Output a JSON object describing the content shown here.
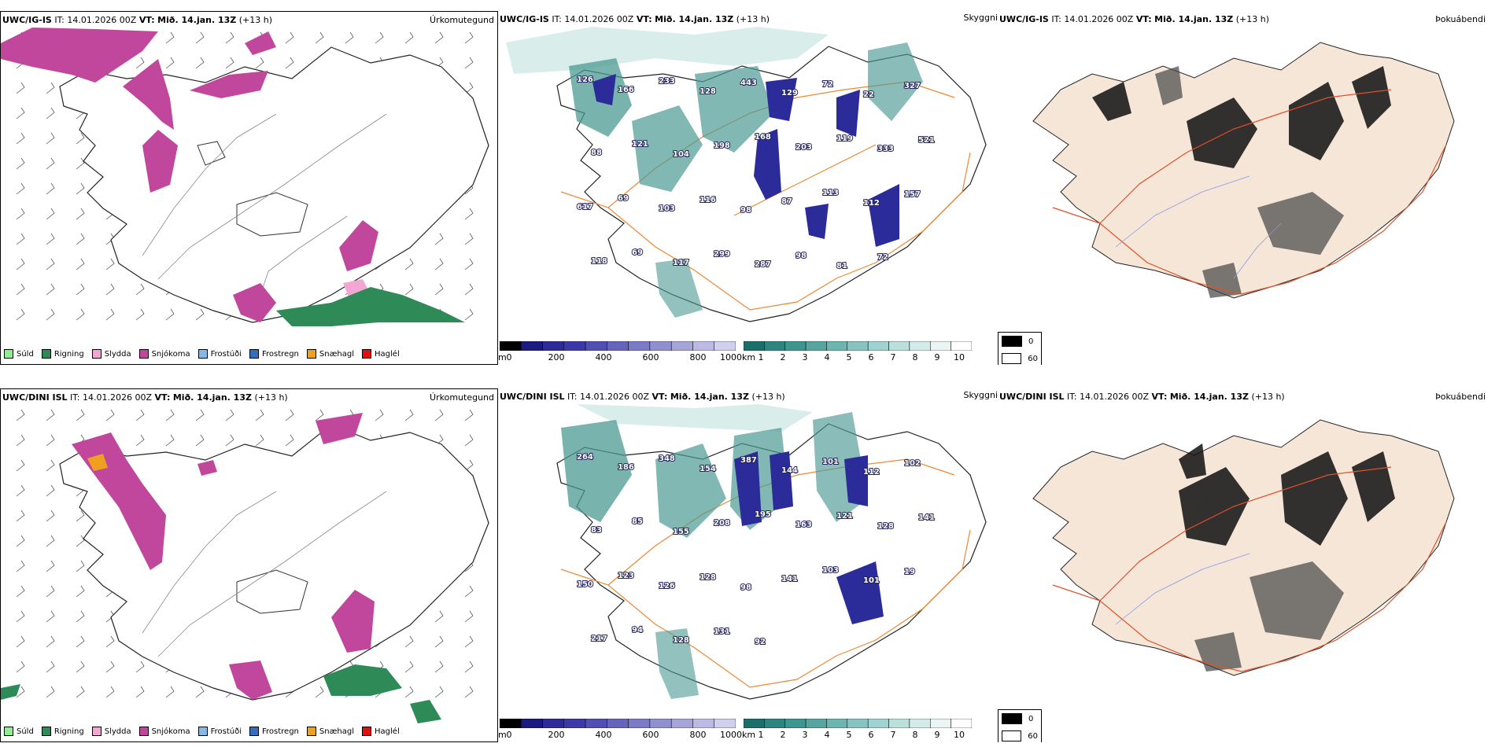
{
  "rows": [
    {
      "model": "UWC/IG-IS",
      "it_label": "IT:",
      "it_value": "14.01.2026 00Z",
      "vt_label": "VT:",
      "vt_value": "Mið. 14.jan. 13Z",
      "lead": "(+13 h)",
      "precip_title": "Úrkomutegund",
      "cloud_title": "Skyggni",
      "fog_title": "Þokuábendi",
      "cloud_labels": [
        "126",
        "166",
        "233",
        "128",
        "443",
        "129",
        "72",
        "22",
        "327",
        "88",
        "121",
        "104",
        "198",
        "168",
        "203",
        "119",
        "333",
        "521",
        "617",
        "69",
        "103",
        "116",
        "98",
        "87",
        "113",
        "112",
        "157",
        "118",
        "69",
        "117",
        "299",
        "287",
        "98",
        "81",
        "72"
      ]
    },
    {
      "model": "UWC/DINI ISL",
      "it_label": "IT:",
      "it_value": "14.01.2026 00Z",
      "vt_label": "VT:",
      "vt_value": "Mið. 14.jan. 13Z",
      "lead": "(+13 h)",
      "precip_title": "Úrkomutegund",
      "cloud_title": "Skyggni",
      "fog_title": "Þokuábendi",
      "cloud_labels": [
        "264",
        "186",
        "348",
        "154",
        "387",
        "144",
        "101",
        "112",
        "102",
        "83",
        "85",
        "155",
        "208",
        "195",
        "163",
        "121",
        "128",
        "141",
        "150",
        "123",
        "126",
        "128",
        "98",
        "141",
        "103",
        "101",
        "19",
        "217",
        "94",
        "128",
        "131",
        "92"
      ]
    }
  ],
  "precip_legend": [
    {
      "label": "Súld",
      "color": "#90ee90"
    },
    {
      "label": "Rigning",
      "color": "#2e8b57"
    },
    {
      "label": "Slydda",
      "color": "#f4a6d2"
    },
    {
      "label": "Snjókoma",
      "color": "#c0479b"
    },
    {
      "label": "Frostúði",
      "color": "#87b8ea"
    },
    {
      "label": "Frostregn",
      "color": "#2f6fc0"
    },
    {
      "label": "Snæhagl",
      "color": "#f0a020"
    },
    {
      "label": "Haglél",
      "color": "#e01010"
    }
  ],
  "ceiling_bar": {
    "unit": "m",
    "ticks": [
      "0",
      "200",
      "400",
      "600",
      "800",
      "1000"
    ],
    "colors": [
      "#000000",
      "#1a1a80",
      "#2b2b9a",
      "#3a3aaa",
      "#5050b4",
      "#6565be",
      "#7a7ac6",
      "#9090d0",
      "#a5a5da",
      "#babae4",
      "#d0d0ee"
    ]
  },
  "vis_bar": {
    "unit": "km",
    "ticks": [
      "1",
      "2",
      "3",
      "4",
      "5",
      "6",
      "7",
      "8",
      "9",
      "10"
    ],
    "colors": [
      "#1b6f6a",
      "#2d8580",
      "#3e9690",
      "#55a6a0",
      "#6cb5b0",
      "#86c4c0",
      "#a0d3cf",
      "#badfdc",
      "#d3ebe9",
      "#eaf5f4",
      "#ffffff"
    ]
  },
  "fog_legend": [
    {
      "label": "0",
      "color": "#000000"
    },
    {
      "label": "60",
      "color": "#ffffff"
    }
  ],
  "colors": {
    "snow": "#c0479b",
    "rain": "#2e8b57",
    "sleet": "#f4a6d2",
    "hail_small": "#f0a020",
    "road": "#ee8833",
    "land": "#f5e6d8",
    "cloud_low": "#2b2b9a",
    "vis_low": "#4b9a93"
  }
}
